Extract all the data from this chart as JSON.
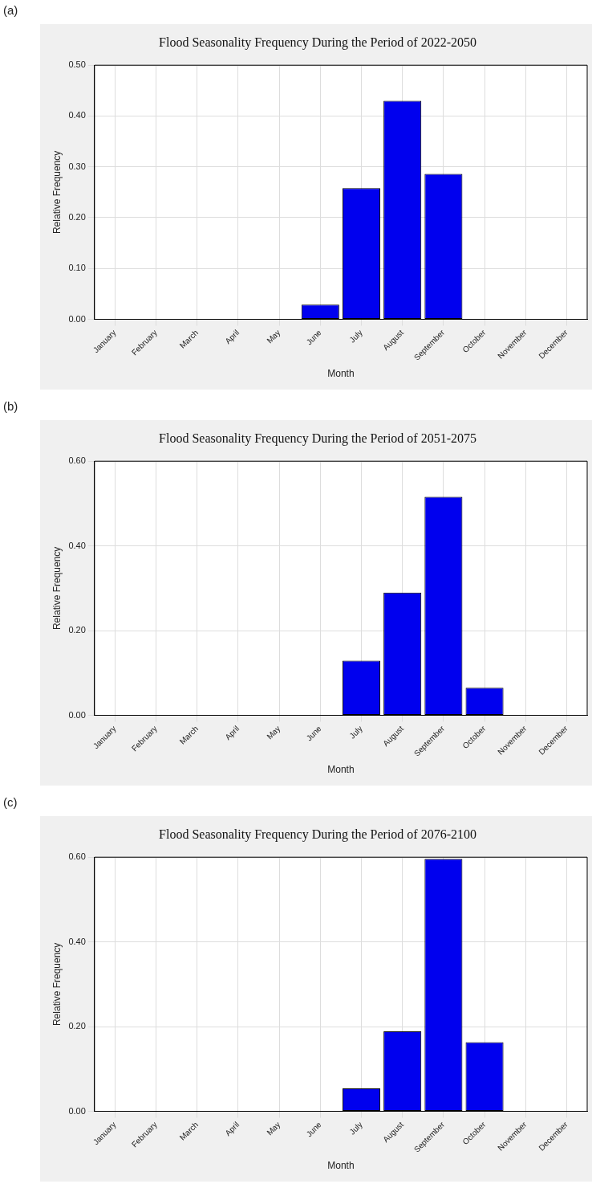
{
  "chart_data": [
    {
      "type": "bar",
      "title": "Flood Seasonality Frequency During the Period of 2022-2050",
      "annotations": [
        "(a)"
      ],
      "xlabel": "Month",
      "ylabel": "Relative Frequency",
      "categories": [
        "January",
        "February",
        "March",
        "April",
        "May",
        "June",
        "July",
        "August",
        "September",
        "October",
        "November",
        "December"
      ],
      "values": [
        0,
        0,
        0,
        0,
        0,
        0.029,
        0.258,
        0.43,
        0.286,
        0,
        0,
        0
      ],
      "color": "#0000ee",
      "ylim": [
        0,
        0.5
      ],
      "yticks": [
        {
          "value": 0,
          "label": "0.00"
        },
        {
          "value": 0.1,
          "label": "0.10"
        },
        {
          "value": 0.2,
          "label": "0.20"
        },
        {
          "value": 0.3,
          "label": "0.30"
        },
        {
          "value": 0.4,
          "label": "0.40"
        },
        {
          "value": 0.5,
          "label": "0.50"
        }
      ],
      "grid": true,
      "legend": false
    },
    {
      "type": "bar",
      "title": "Flood Seasonality Frequency During the Period of 2051-2075",
      "annotations": [
        "(b)"
      ],
      "xlabel": "Month",
      "ylabel": "Relative Frequency",
      "categories": [
        "January",
        "February",
        "March",
        "April",
        "May",
        "June",
        "July",
        "August",
        "September",
        "October",
        "November",
        "December"
      ],
      "values": [
        0,
        0,
        0,
        0,
        0,
        0,
        0.129,
        0.29,
        0.516,
        0.065,
        0,
        0
      ],
      "color": "#0000ee",
      "ylim": [
        0,
        0.6
      ],
      "yticks": [
        {
          "value": 0,
          "label": "0.00"
        },
        {
          "value": 0.2,
          "label": "0.20"
        },
        {
          "value": 0.4,
          "label": "0.40"
        },
        {
          "value": 0.6,
          "label": "0.60"
        }
      ],
      "grid": true,
      "legend": false
    },
    {
      "type": "bar",
      "title": "Flood Seasonality Frequency During the Period of 2076-2100",
      "annotations": [
        "(c)"
      ],
      "xlabel": "Month",
      "ylabel": "Relative Frequency",
      "categories": [
        "January",
        "February",
        "March",
        "April",
        "May",
        "June",
        "July",
        "August",
        "September",
        "October",
        "November",
        "December"
      ],
      "values": [
        0,
        0,
        0,
        0,
        0,
        0,
        0.054,
        0.189,
        0.596,
        0.163,
        0,
        0
      ],
      "color": "#0000ee",
      "ylim": [
        0,
        0.6
      ],
      "yticks": [
        {
          "value": 0,
          "label": "0.00"
        },
        {
          "value": 0.2,
          "label": "0.20"
        },
        {
          "value": 0.4,
          "label": "0.40"
        },
        {
          "value": 0.6,
          "label": "0.60"
        }
      ],
      "grid": true,
      "legend": false
    }
  ]
}
